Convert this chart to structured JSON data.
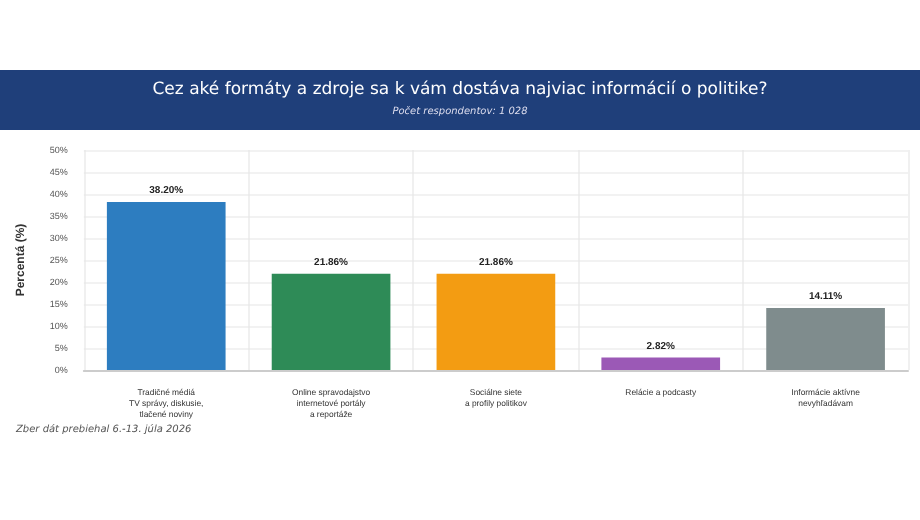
{
  "chart_data": {
    "type": "bar",
    "title": "Cez aké formáty a zdroje sa k vám dostáva najviac informácií o politike?",
    "subtitle": "Počet respondentov: 1 028",
    "categories": [
      "Tradičné médiá\nTV správy, diskusie,\ntlačené noviny",
      "Online spravodajstvo\ninternetové portály\na reportáže",
      "Sociálne siete\na profily politikov",
      "Relácie a podcasty",
      "Informácie aktívne\nnevyhľadávam"
    ],
    "values": [
      38.2,
      21.86,
      21.86,
      2.82,
      14.11
    ],
    "colors": [
      "#2d7dc0",
      "#2e8b57",
      "#f39c12",
      "#9b59b6",
      "#7f8c8d"
    ],
    "value_labels": [
      "38.20%",
      "21.86%",
      "21.86%",
      "2.82%",
      "14.11%"
    ],
    "ylabel": "Percentá (%)",
    "ylim": [
      0,
      50
    ],
    "yticks": [
      {
        "value": 0,
        "label": "0%"
      },
      {
        "value": 5,
        "label": "5%"
      },
      {
        "value": 10,
        "label": "10%"
      },
      {
        "value": 15,
        "label": "15%"
      },
      {
        "value": 20,
        "label": "20%"
      },
      {
        "value": 25,
        "label": "25%"
      },
      {
        "value": 30,
        "label": "30%"
      },
      {
        "value": 35,
        "label": "35%"
      },
      {
        "value": 40,
        "label": "40%"
      },
      {
        "value": 45,
        "label": "45%"
      },
      {
        "value": 50,
        "label": "50%"
      }
    ],
    "grid": true,
    "annotations": [
      "Zber dát prebiehal 6.-13. júla 2026"
    ]
  }
}
